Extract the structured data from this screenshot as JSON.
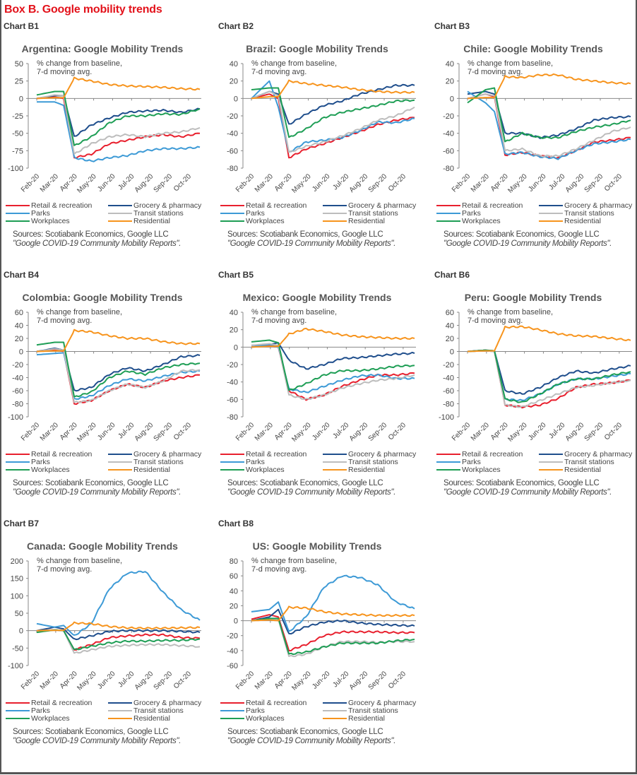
{
  "box_title": "Box B. Google mobility trends",
  "legend": [
    {
      "name": "Retail & recreation",
      "color": "#e8202e"
    },
    {
      "name": "Grocery & pharmacy",
      "color": "#1f4e8c"
    },
    {
      "name": "Parks",
      "color": "#3d9ad6"
    },
    {
      "name": "Transit stations",
      "color": "#bdbdbd"
    },
    {
      "name": "Workplaces",
      "color": "#1e9e55"
    },
    {
      "name": "Residential",
      "color": "#f7941d"
    }
  ],
  "source_line1": "Sources: Scotiabank Economics, Google LLC",
  "source_line2": "\"Google COVID-19 Community Mobility Reports\".",
  "annotation_line1": "% change from baseline,",
  "annotation_line2": "7-d moving avg.",
  "chart_data": [
    {
      "label": "Chart B1",
      "type": "line",
      "title": "Argentina:  Google Mobility  Trends",
      "xlabel": "",
      "ylabel": "% change from baseline, 7-d moving avg.",
      "x": [
        "Feb-20",
        "Mar-20",
        "Mar-20b",
        "Apr-20",
        "May-20",
        "Jun-20",
        "Jul-20",
        "Aug-20",
        "Sep-20",
        "Oct-20",
        "Oct-20e"
      ],
      "x_ticks": [
        "Feb-20",
        "Mar-20",
        "Apr-20",
        "May-20",
        "Jun-20",
        "Jul-20",
        "Aug-20",
        "Sep-20",
        "Oct-20"
      ],
      "y_ticks": [
        50,
        25,
        0,
        -25,
        -50,
        -75,
        -100
      ],
      "ylim": [
        -100,
        50
      ],
      "series": [
        {
          "name": "Retail & recreation",
          "values": [
            0,
            2,
            0,
            -85,
            -80,
            -65,
            -60,
            -55,
            -52,
            -55,
            -50
          ]
        },
        {
          "name": "Grocery & pharmacy",
          "values": [
            0,
            4,
            4,
            -55,
            -38,
            -28,
            -20,
            -18,
            -17,
            -20,
            -15
          ]
        },
        {
          "name": "Parks",
          "values": [
            -5,
            -5,
            -10,
            -85,
            -90,
            -85,
            -82,
            -75,
            -72,
            -72,
            -70
          ]
        },
        {
          "name": "Transit stations",
          "values": [
            0,
            5,
            4,
            -80,
            -65,
            -55,
            -52,
            -55,
            -50,
            -48,
            -42
          ]
        },
        {
          "name": "Workplaces",
          "values": [
            5,
            10,
            10,
            -68,
            -55,
            -35,
            -25,
            -25,
            -22,
            -23,
            -15
          ]
        },
        {
          "name": "Residential",
          "values": [
            0,
            1,
            1,
            29,
            25,
            20,
            18,
            17,
            16,
            14,
            13
          ]
        }
      ]
    },
    {
      "label": "Chart B2",
      "type": "line",
      "title": "Brazil: Google Mobility  Trends",
      "x_ticks": [
        "Feb-20",
        "Mar-20",
        "Apr-20",
        "May-20",
        "Jun-20",
        "Jul-20",
        "Aug-20",
        "Sep-20",
        "Oct-20"
      ],
      "y_ticks": [
        40,
        20,
        0,
        -20,
        -40,
        -60,
        -80
      ],
      "ylim": [
        -80,
        40
      ],
      "series": [
        {
          "name": "Retail & recreation",
          "values": [
            0,
            5,
            0,
            -68,
            -58,
            -52,
            -45,
            -38,
            -30,
            -25,
            -22
          ]
        },
        {
          "name": "Grocery & pharmacy",
          "values": [
            0,
            8,
            5,
            -30,
            -18,
            -8,
            -3,
            5,
            10,
            15,
            15
          ]
        },
        {
          "name": "Parks",
          "values": [
            0,
            20,
            -10,
            -62,
            -50,
            -48,
            -45,
            -37,
            -27,
            -28,
            -23
          ]
        },
        {
          "name": "Transit stations",
          "values": [
            0,
            8,
            3,
            -62,
            -55,
            -50,
            -43,
            -35,
            -25,
            -20,
            -10
          ]
        },
        {
          "name": "Workplaces",
          "values": [
            10,
            12,
            12,
            -45,
            -35,
            -22,
            -16,
            -12,
            -8,
            -3,
            -2
          ]
        },
        {
          "name": "Residential",
          "values": [
            0,
            2,
            2,
            20,
            17,
            15,
            13,
            10,
            8,
            7,
            7
          ]
        }
      ]
    },
    {
      "label": "Chart B3",
      "type": "line",
      "title": "Chile: Google Mobility  Trends",
      "x_ticks": [
        "Feb-20",
        "Mar-20",
        "Apr-20",
        "May-20",
        "Jun-20",
        "Jul-20",
        "Aug-20",
        "Sep-20",
        "Oct-20"
      ],
      "y_ticks": [
        40,
        20,
        0,
        -20,
        -40,
        -60,
        -80
      ],
      "ylim": [
        -80,
        40
      ],
      "series": [
        {
          "name": "Retail & recreation",
          "values": [
            0,
            5,
            2,
            -65,
            -62,
            -66,
            -68,
            -60,
            -50,
            -48,
            -45
          ]
        },
        {
          "name": "Grocery & pharmacy",
          "values": [
            5,
            8,
            5,
            -40,
            -40,
            -45,
            -42,
            -35,
            -25,
            -22,
            -21
          ]
        },
        {
          "name": "Parks",
          "values": [
            8,
            -5,
            -15,
            -64,
            -62,
            -67,
            -69,
            -60,
            -52,
            -50,
            -47
          ]
        },
        {
          "name": "Transit stations",
          "values": [
            0,
            5,
            3,
            -60,
            -58,
            -66,
            -66,
            -58,
            -48,
            -38,
            -33
          ]
        },
        {
          "name": "Workplaces",
          "values": [
            -5,
            10,
            12,
            -50,
            -40,
            -45,
            -45,
            -38,
            -33,
            -30,
            -25
          ]
        },
        {
          "name": "Residential",
          "values": [
            0,
            1,
            1,
            25,
            24,
            27,
            27,
            22,
            20,
            18,
            17
          ]
        }
      ]
    },
    {
      "label": "Chart B4",
      "type": "line",
      "title": "Colombia:  Google Mobility  Trends",
      "x_ticks": [
        "Feb-20",
        "Mar-20",
        "Apr-20",
        "May-20",
        "Jun-20",
        "Jul-20",
        "Aug-20",
        "Sep-20",
        "Oct-20"
      ],
      "y_ticks": [
        60,
        40,
        20,
        0,
        -20,
        -40,
        -60,
        -80,
        -100
      ],
      "ylim": [
        -100,
        60
      ],
      "series": [
        {
          "name": "Retail & recreation",
          "values": [
            0,
            3,
            0,
            -80,
            -75,
            -60,
            -50,
            -55,
            -45,
            -40,
            -36
          ]
        },
        {
          "name": "Grocery & pharmacy",
          "values": [
            0,
            5,
            2,
            -60,
            -55,
            -35,
            -25,
            -30,
            -20,
            -8,
            -6
          ]
        },
        {
          "name": "Parks",
          "values": [
            -5,
            -3,
            -2,
            -73,
            -68,
            -52,
            -42,
            -45,
            -38,
            -32,
            -30
          ]
        },
        {
          "name": "Transit stations",
          "values": [
            0,
            4,
            2,
            -78,
            -75,
            -60,
            -50,
            -55,
            -45,
            -30,
            -28
          ]
        },
        {
          "name": "Workplaces",
          "values": [
            10,
            14,
            14,
            -70,
            -62,
            -40,
            -30,
            -35,
            -25,
            -20,
            -18
          ]
        },
        {
          "name": "Residential",
          "values": [
            0,
            1,
            1,
            32,
            30,
            24,
            20,
            20,
            15,
            12,
            12
          ]
        }
      ]
    },
    {
      "label": "Chart B5",
      "type": "line",
      "title": "Mexico: Google Mobility  Trends",
      "x_ticks": [
        "Feb-20",
        "Mar-20",
        "Apr-20",
        "May-20",
        "Jun-20",
        "Jul-20",
        "Aug-20",
        "Sep-20",
        "Oct-20"
      ],
      "y_ticks": [
        40,
        20,
        0,
        -20,
        -40,
        -60,
        -80
      ],
      "ylim": [
        -80,
        40
      ],
      "series": [
        {
          "name": "Retail & recreation",
          "values": [
            0,
            2,
            0,
            -50,
            -60,
            -55,
            -45,
            -38,
            -32,
            -32,
            -30
          ]
        },
        {
          "name": "Grocery & pharmacy",
          "values": [
            2,
            3,
            5,
            -15,
            -25,
            -20,
            -13,
            -12,
            -10,
            -8,
            -7
          ]
        },
        {
          "name": "Parks",
          "values": [
            0,
            3,
            0,
            -48,
            -52,
            -45,
            -38,
            -33,
            -32,
            -36,
            -36
          ]
        },
        {
          "name": "Transit stations",
          "values": [
            2,
            4,
            2,
            -55,
            -60,
            -55,
            -47,
            -42,
            -38,
            -36,
            -32
          ]
        },
        {
          "name": "Workplaces",
          "values": [
            6,
            8,
            5,
            -50,
            -42,
            -32,
            -27,
            -27,
            -25,
            -22,
            -21
          ]
        },
        {
          "name": "Residential",
          "values": [
            0,
            1,
            1,
            15,
            21,
            18,
            14,
            12,
            11,
            10,
            10
          ]
        }
      ]
    },
    {
      "label": "Chart B6",
      "type": "line",
      "title": "Peru: Google Mobility  Trends",
      "x_ticks": [
        "Feb-20",
        "Mar-20",
        "Apr-20",
        "May-20",
        "Jun-20",
        "Jul-20",
        "Aug-20",
        "Sep-20",
        "Oct-20"
      ],
      "y_ticks": [
        60,
        40,
        20,
        0,
        -20,
        -40,
        -60,
        -80,
        -100
      ],
      "ylim": [
        -100,
        60
      ],
      "series": [
        {
          "name": "Retail & recreation",
          "values": [
            0,
            2,
            0,
            -82,
            -85,
            -82,
            -72,
            -55,
            -50,
            -48,
            -44
          ]
        },
        {
          "name": "Grocery & pharmacy",
          "values": [
            0,
            2,
            1,
            -60,
            -65,
            -55,
            -40,
            -30,
            -33,
            -27,
            -22
          ]
        },
        {
          "name": "Parks",
          "values": [
            0,
            1,
            0,
            -73,
            -75,
            -65,
            -50,
            -42,
            -42,
            -38,
            -34
          ]
        },
        {
          "name": "Transit stations",
          "values": [
            0,
            1,
            0,
            -82,
            -85,
            -75,
            -65,
            -55,
            -52,
            -48,
            -44
          ]
        },
        {
          "name": "Workplaces",
          "values": [
            0,
            2,
            1,
            -73,
            -78,
            -65,
            -50,
            -42,
            -42,
            -36,
            -31
          ]
        },
        {
          "name": "Residential",
          "values": [
            0,
            1,
            1,
            37,
            38,
            33,
            27,
            24,
            23,
            20,
            17
          ]
        }
      ]
    },
    {
      "label": "Chart B7",
      "type": "line",
      "title": "Canada: Google Mobility  Trends",
      "x_ticks": [
        "Feb-20",
        "Mar-20",
        "Apr-20",
        "May-20",
        "Jun-20",
        "Jul-20",
        "Aug-20",
        "Sep-20",
        "Oct-20"
      ],
      "y_ticks": [
        200,
        150,
        100,
        50,
        0,
        -50,
        -100
      ],
      "ylim": [
        -100,
        200
      ],
      "series": [
        {
          "name": "Retail & recreation",
          "values": [
            0,
            2,
            0,
            -55,
            -40,
            -20,
            -15,
            -12,
            -12,
            -20,
            -22
          ]
        },
        {
          "name": "Grocery & pharmacy",
          "values": [
            0,
            10,
            5,
            -25,
            -15,
            -2,
            0,
            0,
            0,
            -2,
            -5
          ]
        },
        {
          "name": "Parks",
          "values": [
            20,
            10,
            15,
            -15,
            20,
            120,
            165,
            170,
            110,
            60,
            30
          ]
        },
        {
          "name": "Transit stations",
          "values": [
            0,
            2,
            0,
            -65,
            -55,
            -45,
            -42,
            -40,
            -40,
            -43,
            -46
          ]
        },
        {
          "name": "Workplaces",
          "values": [
            -5,
            2,
            0,
            -55,
            -45,
            -35,
            -30,
            -30,
            -28,
            -28,
            -24
          ]
        },
        {
          "name": "Residential",
          "values": [
            0,
            1,
            1,
            22,
            20,
            12,
            8,
            7,
            7,
            8,
            9
          ]
        }
      ]
    },
    {
      "label": "Chart B8",
      "type": "line",
      "title": "US: Google Mobility  Trends",
      "x_ticks": [
        "Feb-20",
        "Mar-20",
        "Apr-20",
        "May-20",
        "Jun-20",
        "Jul-20",
        "Aug-20",
        "Sep-20",
        "Oct-20"
      ],
      "y_ticks": [
        80,
        60,
        40,
        20,
        0,
        -20,
        -40,
        -60
      ],
      "ylim": [
        -60,
        80
      ],
      "series": [
        {
          "name": "Retail & recreation",
          "values": [
            2,
            8,
            5,
            -40,
            -32,
            -20,
            -15,
            -15,
            -15,
            -16,
            -16
          ]
        },
        {
          "name": "Grocery & pharmacy",
          "values": [
            0,
            5,
            15,
            -18,
            -8,
            -2,
            0,
            -3,
            -5,
            -6,
            -7
          ]
        },
        {
          "name": "Parks",
          "values": [
            12,
            15,
            25,
            -15,
            5,
            45,
            60,
            58,
            48,
            25,
            16
          ]
        },
        {
          "name": "Transit stations",
          "values": [
            0,
            2,
            2,
            -48,
            -45,
            -35,
            -28,
            -28,
            -29,
            -28,
            -28
          ]
        },
        {
          "name": "Workplaces",
          "values": [
            0,
            3,
            3,
            -45,
            -42,
            -35,
            -30,
            -30,
            -30,
            -27,
            -25
          ]
        },
        {
          "name": "Residential",
          "values": [
            0,
            1,
            0,
            18,
            17,
            12,
            9,
            8,
            7,
            7,
            7
          ]
        }
      ]
    }
  ]
}
